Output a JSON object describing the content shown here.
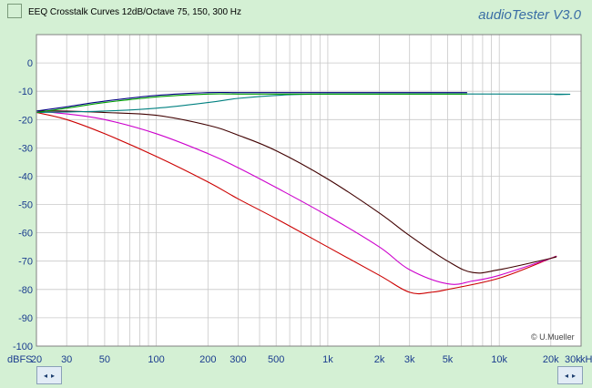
{
  "header": {
    "title": "EEQ Crosstalk Curves 12dB/Octave 75, 150, 300 Hz",
    "brand": "audioTester  V3.0",
    "credit": "© U.Mueller"
  },
  "controls": {
    "left_scroll": [
      "◂",
      "▸"
    ],
    "right_scroll": [
      "◂",
      "▸"
    ]
  },
  "chart_data": {
    "type": "line",
    "xscale": "log",
    "xlim": [
      20,
      30000
    ],
    "ylim": [
      -100,
      10
    ],
    "yunit_label": "dBFS",
    "xunit_label": "kHz",
    "grid": true,
    "yticks": [
      {
        "v": 0,
        "label": "0"
      },
      {
        "v": -10,
        "label": "-10"
      },
      {
        "v": -20,
        "label": "-20"
      },
      {
        "v": -30,
        "label": "-30"
      },
      {
        "v": -40,
        "label": "-40"
      },
      {
        "v": -50,
        "label": "-50"
      },
      {
        "v": -60,
        "label": "-60"
      },
      {
        "v": -70,
        "label": "-70"
      },
      {
        "v": -80,
        "label": "-80"
      },
      {
        "v": -90,
        "label": "-90"
      },
      {
        "v": -100,
        "label": "-100"
      }
    ],
    "xticks": [
      {
        "v": 20,
        "label": "20"
      },
      {
        "v": 30,
        "label": "30"
      },
      {
        "v": 50,
        "label": "50"
      },
      {
        "v": 100,
        "label": "100"
      },
      {
        "v": 200,
        "label": "200"
      },
      {
        "v": 300,
        "label": "300"
      },
      {
        "v": 500,
        "label": "500"
      },
      {
        "v": 1000,
        "label": "1k"
      },
      {
        "v": 2000,
        "label": "2k"
      },
      {
        "v": 3000,
        "label": "3k"
      },
      {
        "v": 5000,
        "label": "5k"
      },
      {
        "v": 10000,
        "label": "10k"
      },
      {
        "v": 20000,
        "label": "20k"
      },
      {
        "v": 30000,
        "label": "30k"
      }
    ],
    "series": [
      {
        "color": "#cc0000",
        "points": [
          [
            20,
            -17.5
          ],
          [
            30,
            -20
          ],
          [
            50,
            -25
          ],
          [
            100,
            -33
          ],
          [
            200,
            -42
          ],
          [
            300,
            -48
          ],
          [
            500,
            -55
          ],
          [
            1000,
            -65
          ],
          [
            2000,
            -75
          ],
          [
            3000,
            -81
          ],
          [
            4000,
            -81
          ],
          [
            5000,
            -80
          ],
          [
            10000,
            -76
          ],
          [
            20000,
            -69
          ],
          [
            21000,
            -68.5
          ]
        ]
      },
      {
        "color": "#cc00cc",
        "points": [
          [
            20,
            -17
          ],
          [
            30,
            -18
          ],
          [
            50,
            -20
          ],
          [
            100,
            -25
          ],
          [
            200,
            -32
          ],
          [
            300,
            -37
          ],
          [
            500,
            -44
          ],
          [
            1000,
            -54
          ],
          [
            2000,
            -65
          ],
          [
            3000,
            -73
          ],
          [
            5000,
            -78
          ],
          [
            7000,
            -77
          ],
          [
            10000,
            -75
          ],
          [
            20000,
            -69
          ],
          [
            21000,
            -68.5
          ]
        ]
      },
      {
        "color": "#400000",
        "points": [
          [
            20,
            -17
          ],
          [
            30,
            -17
          ],
          [
            50,
            -17.5
          ],
          [
            100,
            -18.5
          ],
          [
            200,
            -22
          ],
          [
            300,
            -25.5
          ],
          [
            500,
            -31
          ],
          [
            1000,
            -41
          ],
          [
            2000,
            -53
          ],
          [
            3000,
            -61
          ],
          [
            5000,
            -70
          ],
          [
            7000,
            -74
          ],
          [
            10000,
            -73
          ],
          [
            20000,
            -69
          ],
          [
            21000,
            -68.5
          ]
        ]
      },
      {
        "color": "#008080",
        "points": [
          [
            20,
            -17.5
          ],
          [
            50,
            -17
          ],
          [
            100,
            -16
          ],
          [
            200,
            -14
          ],
          [
            300,
            -12.5
          ],
          [
            500,
            -11.5
          ],
          [
            1000,
            -11
          ],
          [
            20000,
            -11
          ],
          [
            21000,
            -11.2
          ]
        ]
      },
      {
        "color": "#00a000",
        "points": [
          [
            20,
            -17.5
          ],
          [
            30,
            -16
          ],
          [
            50,
            -14
          ],
          [
            100,
            -12
          ],
          [
            200,
            -11
          ],
          [
            300,
            -11
          ],
          [
            500,
            -11
          ],
          [
            1000,
            -11
          ],
          [
            6500,
            -11
          ]
        ]
      },
      {
        "color": "#000080",
        "points": [
          [
            20,
            -17
          ],
          [
            30,
            -15.5
          ],
          [
            50,
            -13.5
          ],
          [
            100,
            -11.5
          ],
          [
            200,
            -10.5
          ],
          [
            300,
            -10.5
          ],
          [
            500,
            -10.5
          ],
          [
            1000,
            -10.5
          ],
          [
            6500,
            -10.5
          ]
        ]
      }
    ]
  }
}
